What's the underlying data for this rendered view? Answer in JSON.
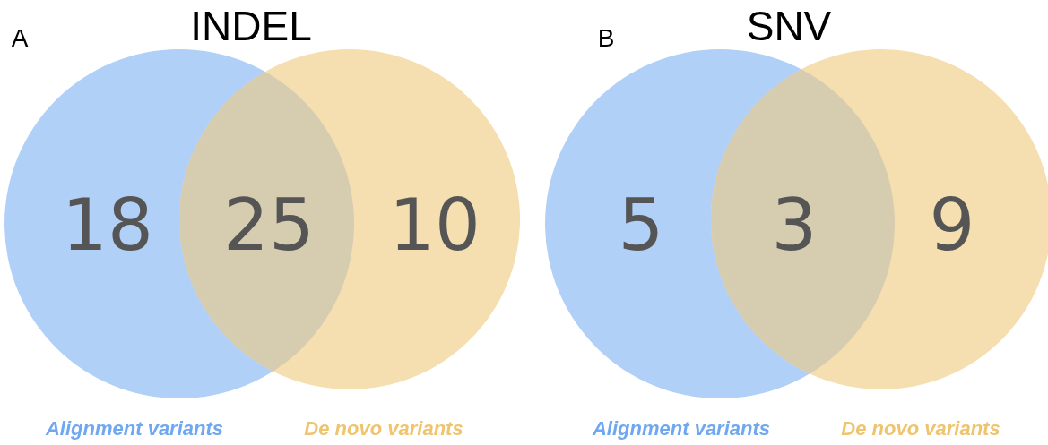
{
  "chart_data": [
    {
      "type": "other",
      "title": "INDEL",
      "annotations": [
        "A",
        "Alignment variants",
        "De novo variants"
      ],
      "categories": [
        null,
        null,
        null
      ],
      "colors": [
        "#b0d0f7",
        "#d6ccb0",
        "#f5deb0"
      ],
      "values": [
        18,
        25,
        10
      ],
      "data_labels": true
    },
    {
      "type": "other",
      "title": "SNV",
      "annotations": [
        "B",
        "Alignment variants",
        "De novo variants"
      ],
      "categories": [
        null,
        null,
        null
      ],
      "colors": [
        "#b0d0f7",
        "#d6ccb0",
        "#f5deb0"
      ],
      "values": [
        5,
        3,
        9
      ],
      "data_labels": true
    }
  ]
}
